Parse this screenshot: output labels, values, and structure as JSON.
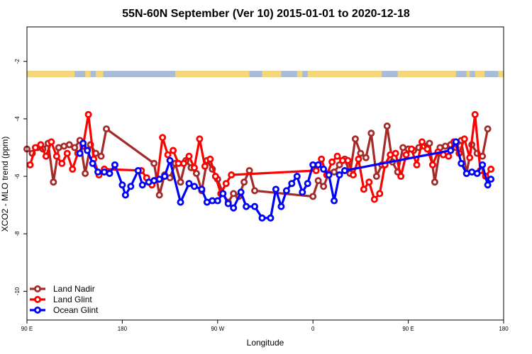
{
  "chart_data": {
    "type": "line",
    "title": "55N-60N September (Ver 10)   2015-01-01 to 2020-12-18",
    "xlabel": "Longitude",
    "ylabel": "XCO2 - MLO trend (ppm)",
    "x_ticks": [
      {
        "value": 90,
        "label": "90 E"
      },
      {
        "value": 180,
        "label": "180"
      },
      {
        "value": 270,
        "label": "90 W"
      },
      {
        "value": 360,
        "label": "0"
      },
      {
        "value": 450,
        "label": "90 E"
      },
      {
        "value": 540,
        "label": "180"
      }
    ],
    "y_ticks": [
      -10,
      -8,
      -6,
      -4,
      -2
    ],
    "xlim": [
      90,
      540
    ],
    "ylim": [
      -11,
      -0.8
    ],
    "grid": false,
    "legend_position": "bottom-left",
    "land_strip": {
      "y_min": -2.55,
      "y_max": -2.33,
      "ocean_color": "#a9bcd8",
      "land_color": "#f5d779"
    },
    "colors": {
      "Land Nadir": "#a52a2a",
      "Land Glint": "#ff0000",
      "Ocean Glint": "#0000ff"
    },
    "series": [
      {
        "name": "Land Nadir",
        "color": "#a52a2a",
        "x": [
          90,
          95,
          100,
          105,
          110,
          115,
          120,
          125,
          130,
          135,
          140,
          145,
          150,
          155,
          160,
          165,
          210,
          215,
          220,
          225,
          230,
          235,
          240,
          245,
          250,
          255,
          260,
          265,
          270,
          275,
          280,
          285,
          290,
          295,
          300,
          305,
          360,
          365,
          370,
          375,
          380,
          385,
          390,
          395,
          400,
          405,
          410,
          415,
          420,
          425,
          430,
          435,
          440,
          445,
          450,
          455,
          460,
          465,
          470,
          475,
          480,
          485,
          490,
          495,
          500,
          505,
          510,
          515,
          520,
          525
        ],
        "y": [
          -5.05,
          -5.2,
          -5.0,
          -5.05,
          -4.85,
          -6.2,
          -5.0,
          -4.95,
          -4.9,
          -5.0,
          -4.75,
          -5.9,
          -4.9,
          -5.2,
          -5.3,
          -4.35,
          -5.55,
          -6.65,
          -5.95,
          -6.05,
          -5.55,
          -6.2,
          -5.45,
          -5.7,
          -5.9,
          -6.5,
          -5.45,
          -5.75,
          -6.1,
          -6.6,
          -6.9,
          -6.6,
          -6.7,
          -6.2,
          -5.8,
          -6.5,
          -6.7,
          -6.15,
          -6.35,
          -5.9,
          -5.85,
          -5.6,
          -5.4,
          -5.9,
          -4.7,
          -5.2,
          -5.35,
          -4.5,
          -6.0,
          -5.6,
          -4.25,
          -5.5,
          -5.85,
          -5.0,
          -5.05,
          -5.1,
          -5.0,
          -4.95,
          -4.85,
          -6.2,
          -5.0,
          -4.95,
          -4.9,
          -5.0,
          -4.75,
          -5.9,
          -4.9,
          -5.2,
          -5.3,
          -4.35
        ]
      },
      {
        "name": "Land Glint",
        "color": "#ff0000",
        "x": [
          93,
          98,
          103,
          108,
          113,
          118,
          123,
          128,
          133,
          138,
          143,
          148,
          153,
          158,
          163,
          198,
          203,
          208,
          213,
          218,
          223,
          228,
          233,
          238,
          243,
          248,
          253,
          258,
          263,
          268,
          273,
          278,
          283,
          363,
          368,
          373,
          378,
          383,
          388,
          393,
          398,
          403,
          408,
          413,
          418,
          423,
          428,
          433,
          438,
          443,
          448,
          453,
          458,
          463,
          468,
          473,
          478,
          483,
          488,
          493,
          498,
          503,
          508,
          513,
          518,
          523,
          528
        ],
        "y": [
          -5.6,
          -5.0,
          -4.9,
          -5.3,
          -4.8,
          -5.3,
          -5.55,
          -5.2,
          -5.75,
          -5.2,
          -4.95,
          -3.85,
          -5.4,
          -5.95,
          -5.75,
          -5.8,
          -6.05,
          -6.3,
          -6.1,
          -4.65,
          -5.25,
          -5.1,
          -5.55,
          -5.55,
          -5.3,
          -5.7,
          -4.7,
          -5.65,
          -5.4,
          -6.0,
          -6.6,
          -6.25,
          -5.95,
          -5.8,
          -5.4,
          -5.95,
          -5.5,
          -5.3,
          -5.45,
          -5.45,
          -5.95,
          -5.4,
          -6.45,
          -6.2,
          -6.8,
          -6.6,
          -5.6,
          -5.25,
          -5.2,
          -6.0,
          -5.25,
          -5.05,
          -5.6,
          -4.8,
          -5.05,
          -5.6,
          -5.15,
          -5.25,
          -5.3,
          -4.8,
          -5.2,
          -4.7,
          -5.35,
          -3.85,
          -5.8,
          -6.0,
          -5.75
        ]
      },
      {
        "name": "Ocean Glint",
        "color": "#0000ff",
        "x": [
          140,
          143,
          147,
          152,
          157,
          163,
          168,
          173,
          180,
          183,
          188,
          195,
          199,
          205,
          210,
          215,
          220,
          225,
          235,
          243,
          248,
          255,
          260,
          265,
          270,
          275,
          280,
          285,
          292,
          297,
          305,
          312,
          320,
          325,
          330,
          335,
          340,
          345,
          350,
          355,
          360,
          365,
          370,
          375,
          380,
          385,
          390,
          490,
          495,
          500,
          505,
          510,
          515,
          520,
          525,
          528
        ],
        "y": [
          -5.2,
          -4.85,
          -5.1,
          -5.55,
          -5.85,
          -5.85,
          -5.9,
          -5.6,
          -6.3,
          -6.65,
          -6.35,
          -5.8,
          -6.3,
          -6.2,
          -6.15,
          -6.1,
          -6.0,
          -5.45,
          -6.9,
          -6.25,
          -6.35,
          -6.45,
          -6.9,
          -6.85,
          -6.85,
          -6.6,
          -6.95,
          -7.1,
          -6.55,
          -7.05,
          -7.05,
          -7.45,
          -7.45,
          -6.45,
          -7.05,
          -6.5,
          -6.25,
          -6.0,
          -6.55,
          -6.25,
          -5.6,
          -5.6,
          -5.75,
          -5.95,
          -6.85,
          -5.95,
          -5.8,
          -5.1,
          -4.8,
          -5.55,
          -5.9,
          -5.85,
          -5.9,
          -5.6,
          -6.3,
          -6.1
        ]
      }
    ]
  }
}
